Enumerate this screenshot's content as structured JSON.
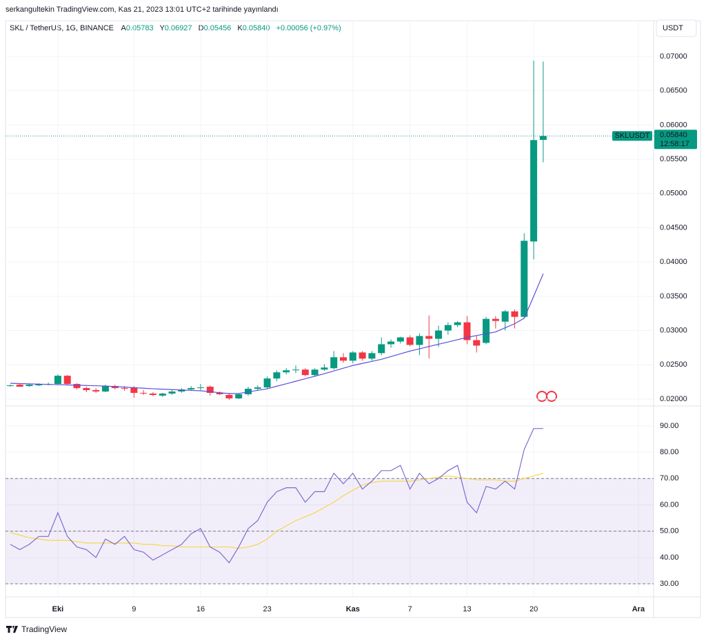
{
  "header": {
    "published": "serkangultekin TradingView.com, Kas 21, 2023 13:01 UTC+2 tarihinde yayınlandı",
    "brand": "TradingView"
  },
  "chart_data": [
    {
      "type": "candlestick",
      "title": "SKL / TetherUS, 1G, BINANCE",
      "legend_keys": [
        "A",
        "Y",
        "D",
        "K"
      ],
      "legend_values": [
        "0.05783",
        "0.06927",
        "0.05456",
        "0.05840"
      ],
      "change": "+0.00056 (+0.97%)",
      "currency": "USDT",
      "symbol": "SKLUSDT",
      "last_price_label": "0.05840",
      "countdown": "12:58:17",
      "open": [
        0.0219,
        0.0221,
        0.0219,
        0.022,
        0.0221,
        0.0222,
        0.0234,
        0.0222,
        0.0216,
        0.0213,
        0.0211,
        0.0219,
        0.0216,
        0.0217,
        0.0209,
        0.0208,
        0.0205,
        0.0208,
        0.0211,
        0.0214,
        0.0216,
        0.0218,
        0.0209,
        0.0206,
        0.0201,
        0.0207,
        0.0215,
        0.0217,
        0.023,
        0.0239,
        0.0242,
        0.0243,
        0.0235,
        0.0243,
        0.0245,
        0.0261,
        0.0256,
        0.0268,
        0.0259,
        0.0267,
        0.028,
        0.0284,
        0.029,
        0.0279,
        0.0292,
        0.0288,
        0.03,
        0.0308,
        0.0312,
        0.0286,
        0.0282,
        0.0317,
        0.0313,
        0.0328,
        0.032,
        0.043,
        0.05783
      ],
      "high": [
        0.0221,
        0.0223,
        0.0222,
        0.0223,
        0.0224,
        0.0236,
        0.0235,
        0.0223,
        0.0218,
        0.0216,
        0.0221,
        0.0221,
        0.0219,
        0.0219,
        0.0213,
        0.021,
        0.0209,
        0.0213,
        0.0216,
        0.0219,
        0.0222,
        0.022,
        0.0211,
        0.0209,
        0.0208,
        0.0218,
        0.022,
        0.0233,
        0.0242,
        0.0245,
        0.0249,
        0.0245,
        0.0245,
        0.0251,
        0.027,
        0.0267,
        0.027,
        0.027,
        0.027,
        0.029,
        0.0287,
        0.0291,
        0.0293,
        0.0296,
        0.0322,
        0.0307,
        0.0312,
        0.0314,
        0.0321,
        0.0293,
        0.032,
        0.0321,
        0.033,
        0.0331,
        0.0442,
        0.0694,
        0.06927
      ],
      "low": [
        0.0218,
        0.0218,
        0.0218,
        0.0219,
        0.022,
        0.0221,
        0.022,
        0.0214,
        0.021,
        0.0209,
        0.021,
        0.0214,
        0.0212,
        0.0202,
        0.0206,
        0.0204,
        0.0203,
        0.0206,
        0.0209,
        0.0212,
        0.0213,
        0.0205,
        0.0206,
        0.0199,
        0.02,
        0.0205,
        0.0213,
        0.0215,
        0.0226,
        0.0236,
        0.0238,
        0.0233,
        0.0233,
        0.0241,
        0.0243,
        0.0253,
        0.0252,
        0.0256,
        0.0256,
        0.0264,
        0.0275,
        0.0281,
        0.0277,
        0.0264,
        0.0259,
        0.0276,
        0.0294,
        0.0305,
        0.028,
        0.0268,
        0.028,
        0.0303,
        0.03,
        0.0303,
        0.0318,
        0.0404,
        0.05456
      ],
      "close": [
        0.022,
        0.0218,
        0.0221,
        0.0222,
        0.0222,
        0.0234,
        0.0222,
        0.0216,
        0.0213,
        0.0211,
        0.0219,
        0.0216,
        0.0215,
        0.0209,
        0.0208,
        0.0206,
        0.0208,
        0.0211,
        0.0214,
        0.0216,
        0.0217,
        0.0209,
        0.0207,
        0.0201,
        0.0207,
        0.0215,
        0.0217,
        0.023,
        0.0239,
        0.0242,
        0.0243,
        0.0235,
        0.0243,
        0.0246,
        0.0261,
        0.0256,
        0.0268,
        0.0259,
        0.0267,
        0.028,
        0.0284,
        0.029,
        0.0279,
        0.0292,
        0.0288,
        0.03,
        0.0308,
        0.0312,
        0.0286,
        0.0278,
        0.0317,
        0.0314,
        0.0328,
        0.032,
        0.0431,
        0.0578,
        0.0584
      ],
      "colors": {
        "up": "#089981",
        "down": "#f23645"
      },
      "ma": {
        "color": "#5b4fd9",
        "values": [
          0.0223,
          0.02226,
          0.02222,
          0.02218,
          0.02214,
          0.0221,
          0.02206,
          0.02202,
          0.02198,
          0.02194,
          0.0219,
          0.02182,
          0.02174,
          0.02166,
          0.02158,
          0.0215,
          0.02144,
          0.02138,
          0.02132,
          0.02126,
          0.0212,
          0.02107,
          0.02093,
          0.0208,
          0.0208,
          0.02103,
          0.02127,
          0.0215,
          0.02187,
          0.02223,
          0.0226,
          0.02297,
          0.02333,
          0.0237,
          0.0241,
          0.0245,
          0.0249,
          0.0252,
          0.0255,
          0.0258,
          0.0262,
          0.0266,
          0.027,
          0.02733,
          0.02767,
          0.028,
          0.02833,
          0.02867,
          0.029,
          0.02927,
          0.02953,
          0.0298,
          0.0304,
          0.031,
          0.0318,
          0.035,
          0.0383
        ]
      },
      "xlim": [
        -0.5,
        67.6
      ],
      "xticks": [
        {
          "value": 5,
          "label": "Eki"
        },
        {
          "value": 13,
          "label": "9"
        },
        {
          "value": 20,
          "label": "16"
        },
        {
          "value": 27,
          "label": "23"
        },
        {
          "value": 36,
          "label": "Kas"
        },
        {
          "value": 42,
          "label": "7"
        },
        {
          "value": 48,
          "label": "13"
        },
        {
          "value": 55,
          "label": "20"
        },
        {
          "value": 66,
          "label": "Ara"
        }
      ],
      "ylim": [
        0.01909,
        0.07523
      ],
      "yticks": [
        {
          "value": 0.02,
          "label": "0.02000"
        },
        {
          "value": 0.025,
          "label": "0.02500"
        },
        {
          "value": 0.03,
          "label": "0.03000"
        },
        {
          "value": 0.035,
          "label": "0.03500"
        },
        {
          "value": 0.04,
          "label": "0.04000"
        },
        {
          "value": 0.045,
          "label": "0.04500"
        },
        {
          "value": 0.05,
          "label": "0.05000"
        },
        {
          "value": 0.055,
          "label": "0.05500"
        },
        {
          "value": 0.06,
          "label": "0.06000"
        },
        {
          "value": 0.065,
          "label": "0.06500"
        },
        {
          "value": 0.07,
          "label": "0.07000"
        }
      ],
      "grid": true
    },
    {
      "type": "rsi",
      "series": [
        {
          "color": "#7e6bd0",
          "values": [
            45,
            43,
            45,
            48,
            48,
            57,
            48,
            44,
            43,
            40,
            47,
            45,
            48,
            43,
            42,
            39,
            41,
            43,
            45,
            49,
            51,
            44,
            42,
            38,
            44,
            51,
            54,
            61,
            65,
            66.5,
            66.5,
            61,
            65,
            65,
            72,
            68,
            72,
            66,
            69,
            73,
            73,
            75,
            66,
            72,
            68,
            70,
            73,
            75,
            61,
            57,
            67,
            66,
            69,
            66,
            81,
            89,
            89
          ]
        },
        {
          "color": "#f5d64e",
          "values": [
            49.5,
            48.5,
            47.5,
            47,
            46.5,
            46.5,
            46.5,
            46,
            45.5,
            45.5,
            45.5,
            45.5,
            45.5,
            45.5,
            45,
            45,
            44.5,
            44.5,
            44,
            44,
            44,
            44,
            44,
            44,
            43.5,
            44,
            45,
            47,
            50,
            52,
            54,
            55.5,
            57,
            59,
            61,
            63.5,
            65.5,
            67.5,
            68.5,
            69,
            69,
            69,
            69,
            69.5,
            70,
            70.5,
            71,
            70.5,
            70,
            69.5,
            69.5,
            69.5,
            69,
            69,
            70,
            71,
            72
          ]
        }
      ],
      "bands": [
        70,
        50,
        30
      ],
      "band_color": "#7e57c2",
      "ylim": [
        25.3,
        97.3
      ],
      "yticks": [
        {
          "value": 30,
          "label": "30.00"
        },
        {
          "value": 40,
          "label": "40.00"
        },
        {
          "value": 50,
          "label": "50.00"
        },
        {
          "value": 60,
          "label": "60.00"
        },
        {
          "value": 70,
          "label": "70.00"
        },
        {
          "value": 80,
          "label": "80.00"
        },
        {
          "value": 90,
          "label": "90.00"
        }
      ],
      "grid": true
    }
  ]
}
